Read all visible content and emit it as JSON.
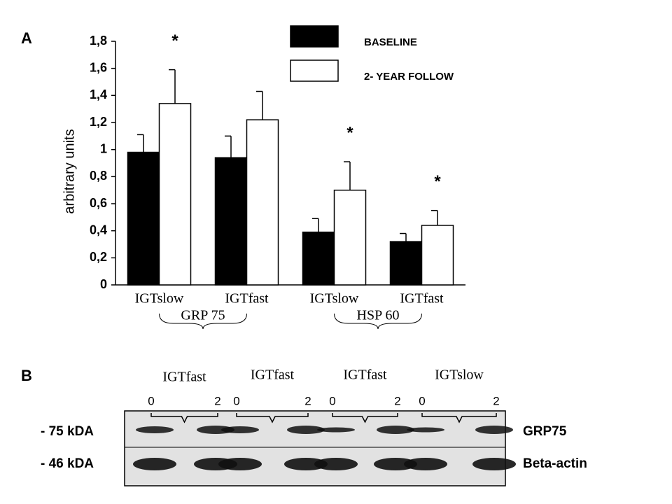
{
  "chart_data": {
    "type": "bar",
    "panel_label": "A",
    "y_label": "arbitrary units",
    "categories": [
      "IGTslow",
      "IGTfast",
      "IGTslow",
      "IGTfast"
    ],
    "groups": [
      "GRP 75",
      "HSP 60"
    ],
    "series": [
      {
        "name": "BASELINE",
        "color": "#000000",
        "values": [
          0.98,
          0.94,
          0.39,
          0.32
        ],
        "errors": [
          0.13,
          0.16,
          0.1,
          0.06
        ]
      },
      {
        "name": "2- YEAR FOLLOW",
        "color": "#ffffff",
        "values": [
          1.34,
          1.22,
          0.7,
          0.44
        ],
        "errors": [
          0.25,
          0.21,
          0.21,
          0.11
        ]
      }
    ],
    "significance": [
      "*",
      null,
      "*",
      "*"
    ],
    "ylim": [
      0,
      1.8
    ],
    "yticks": [
      0,
      {
        "value": 0.2,
        "label": "0,2"
      },
      {
        "value": 0.4,
        "label": "0,4"
      },
      {
        "value": 0.6,
        "label": "0,6"
      },
      {
        "value": 0.8,
        "label": "0,8"
      },
      1,
      {
        "value": 1.2,
        "label": "1,2"
      },
      {
        "value": 1.4,
        "label": "1,4"
      },
      {
        "value": 1.6,
        "label": "1,6"
      },
      {
        "value": 1.8,
        "label": "1,8"
      }
    ],
    "grid": false
  },
  "blot": {
    "panel_label": "B",
    "lane_groups": [
      {
        "label": "IGTfast",
        "timepoints": [
          "0",
          "2"
        ]
      },
      {
        "label": "IGTfast",
        "timepoints": [
          "0",
          "2"
        ]
      },
      {
        "label": "IGTfast",
        "timepoints": [
          "0",
          "2"
        ]
      },
      {
        "label": "IGTslow",
        "timepoints": [
          "0",
          "2"
        ]
      }
    ],
    "rows": [
      {
        "marker": "- 75 kDA",
        "protein": "GRP75"
      },
      {
        "marker": "- 46 kDA",
        "protein": "Beta-actin"
      }
    ]
  }
}
